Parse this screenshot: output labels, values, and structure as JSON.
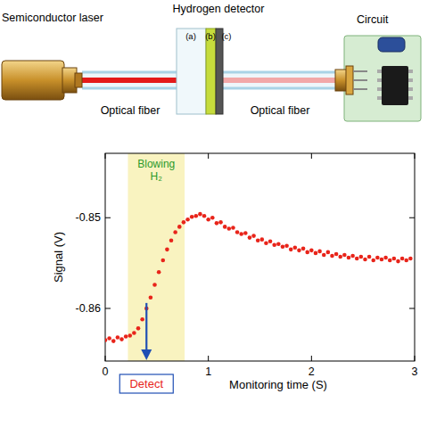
{
  "diagram": {
    "laser": "Semiconductor laser",
    "detector": "Hydrogen detector",
    "layers": [
      "(a)",
      "(b)",
      "(c)"
    ],
    "circuit": "Circuit",
    "fibers": [
      "Optical fiber",
      "Optical fiber"
    ]
  },
  "chart_data": {
    "type": "scatter",
    "x_label": "Monitoring time (S)",
    "y_label": "Signal (V)",
    "xlim": [
      0,
      3
    ],
    "xticks": [
      0,
      1,
      2,
      3
    ],
    "ylim": [
      -0.8658,
      -0.8429
    ],
    "yticks": [
      -0.86,
      -0.85
    ],
    "grid": false,
    "marker": "circle",
    "color": "#e8241a",
    "annotations": [
      {
        "text": "Blowing H₂",
        "x": [
          0.22,
          0.77
        ],
        "color": "#f9f3c0"
      },
      {
        "text": "Detect",
        "x": 0.4,
        "y": -0.8594,
        "color": "#1f4fb4"
      }
    ],
    "x": [
      0.0,
      0.04,
      0.08,
      0.12,
      0.16,
      0.2,
      0.24,
      0.28,
      0.32,
      0.36,
      0.4,
      0.44,
      0.48,
      0.52,
      0.56,
      0.6,
      0.64,
      0.68,
      0.72,
      0.76,
      0.8,
      0.84,
      0.88,
      0.92,
      0.96,
      1.0,
      1.04,
      1.08,
      1.12,
      1.16,
      1.2,
      1.24,
      1.28,
      1.32,
      1.36,
      1.4,
      1.44,
      1.48,
      1.52,
      1.56,
      1.6,
      1.64,
      1.68,
      1.72,
      1.76,
      1.8,
      1.84,
      1.88,
      1.92,
      1.96,
      2.0,
      2.04,
      2.08,
      2.12,
      2.16,
      2.2,
      2.24,
      2.28,
      2.32,
      2.36,
      2.4,
      2.44,
      2.48,
      2.52,
      2.56,
      2.6,
      2.64,
      2.68,
      2.72,
      2.76,
      2.8,
      2.84,
      2.88,
      2.92,
      2.96
    ],
    "values": [
      -0.8635,
      -0.8633,
      -0.8636,
      -0.8632,
      -0.8634,
      -0.8631,
      -0.863,
      -0.8627,
      -0.8622,
      -0.8612,
      -0.86,
      -0.8588,
      -0.8574,
      -0.856,
      -0.8547,
      -0.8535,
      -0.8525,
      -0.8516,
      -0.851,
      -0.8505,
      -0.8502,
      -0.8499,
      -0.8498,
      -0.8496,
      -0.8498,
      -0.8502,
      -0.85,
      -0.8506,
      -0.8505,
      -0.851,
      -0.8512,
      -0.8511,
      -0.8516,
      -0.8518,
      -0.8517,
      -0.8522,
      -0.852,
      -0.8525,
      -0.8524,
      -0.8528,
      -0.8526,
      -0.853,
      -0.8529,
      -0.8532,
      -0.8531,
      -0.8535,
      -0.8533,
      -0.8536,
      -0.8534,
      -0.8538,
      -0.8536,
      -0.8539,
      -0.8537,
      -0.8541,
      -0.8538,
      -0.8542,
      -0.854,
      -0.8543,
      -0.8541,
      -0.8544,
      -0.8542,
      -0.8545,
      -0.8543,
      -0.8546,
      -0.8543,
      -0.8547,
      -0.8544,
      -0.8546,
      -0.8544,
      -0.8547,
      -0.8545,
      -0.8548,
      -0.8545,
      -0.8547,
      -0.8545
    ]
  }
}
